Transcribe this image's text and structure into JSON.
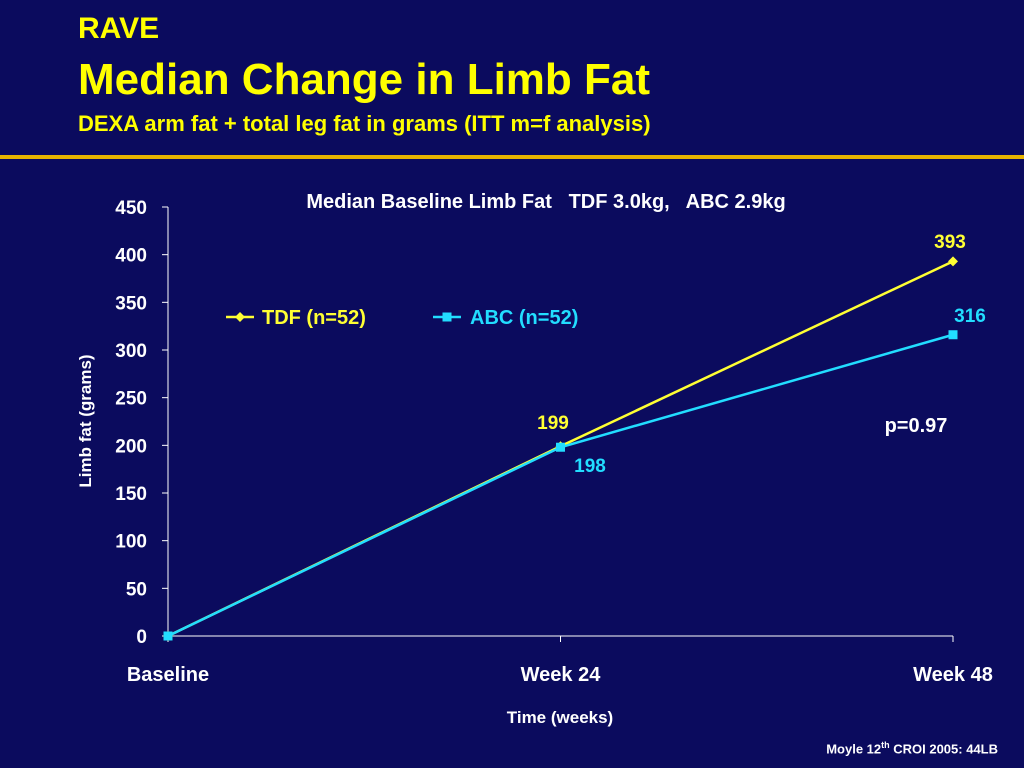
{
  "header": {
    "title_small": "RAVE",
    "title_main": "Median Change in Limb Fat",
    "subtitle": "DEXA arm fat + total leg fat in grams (ITT m=f analysis)"
  },
  "footer": {
    "text_pre": "Moyle 12",
    "text_sup": "th",
    "text_post": " CROI 2005: 44LB"
  },
  "colors": {
    "background": "#0b0b5e",
    "title": "#ffff00",
    "rule": "#e8b400",
    "tdf": "#ffff33",
    "abc": "#22ddff",
    "text": "#ffffff"
  },
  "chart_data": {
    "type": "line",
    "title": "Median Baseline Limb Fat   TDF 3.0kg,   ABC 2.9kg",
    "xlabel": "Time (weeks)",
    "ylabel": "Limb fat (grams)",
    "ylim": [
      0,
      450
    ],
    "yticks": [
      0,
      50,
      100,
      150,
      200,
      250,
      300,
      350,
      400,
      450
    ],
    "categories": [
      "Baseline",
      "Week 24",
      "Week 48"
    ],
    "series": [
      {
        "name": "TDF (n=52)",
        "values": [
          0,
          199,
          393
        ],
        "color": "#ffff33",
        "marker": "diamond",
        "labels": [
          "",
          "199",
          "393"
        ]
      },
      {
        "name": "ABC (n=52)",
        "values": [
          0,
          198,
          316
        ],
        "color": "#22ddff",
        "marker": "square",
        "labels": [
          "",
          "198",
          "316"
        ]
      }
    ],
    "legend": "top-left",
    "grid": false,
    "annotation": "p=0.97"
  }
}
